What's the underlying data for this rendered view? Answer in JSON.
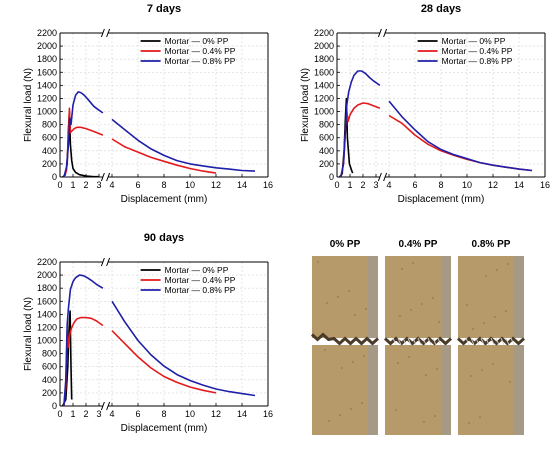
{
  "chart_data": [
    {
      "type": "line",
      "title": "7 days",
      "xlabel": "Displacement (mm)",
      "ylabel": "Flexural load (N)",
      "xlim": [
        0,
        16
      ],
      "ylim": [
        0,
        2200
      ],
      "axis_break": [
        3.3,
        3.7
      ],
      "xticks": [
        "0",
        "1",
        "2",
        "3",
        "4",
        "6",
        "8",
        "10",
        "12",
        "14",
        "16"
      ],
      "yticks": [
        "0",
        "200",
        "400",
        "600",
        "800",
        "1000",
        "1200",
        "1400",
        "1600",
        "1800",
        "2000",
        "2200"
      ],
      "legend_position": "top-right",
      "grid": true,
      "series": [
        {
          "name": "Mortar — 0% PP",
          "color": "#000000",
          "x": [
            0.2,
            0.4,
            0.55,
            0.65,
            0.72,
            0.8,
            0.9,
            1.0,
            1.2,
            1.5,
            2.0,
            2.5,
            3.0
          ],
          "y": [
            0,
            30,
            200,
            750,
            1000,
            500,
            250,
            130,
            70,
            35,
            15,
            8,
            5
          ]
        },
        {
          "name": "Mortar — 0.4% PP",
          "color": "#e41a1c",
          "x": [
            0.3,
            0.5,
            0.65,
            0.72,
            0.8,
            0.9,
            1.1,
            1.3,
            1.6,
            2.0,
            2.4,
            2.8,
            3.3,
            4.0,
            5,
            6,
            7,
            8,
            9,
            10,
            11,
            12
          ],
          "y": [
            0,
            100,
            600,
            1050,
            680,
            700,
            740,
            760,
            760,
            740,
            710,
            680,
            640,
            580,
            460,
            380,
            300,
            240,
            180,
            130,
            90,
            60
          ]
        },
        {
          "name": "Mortar — 0.8% PP",
          "color": "#1f1fa8",
          "x": [
            0.3,
            0.5,
            0.65,
            0.75,
            0.85,
            1.0,
            1.2,
            1.4,
            1.6,
            1.8,
            2.0,
            2.3,
            2.6,
            3.0,
            3.3,
            4.0,
            5,
            6,
            7,
            8,
            9,
            10,
            11,
            12,
            13,
            14,
            15
          ],
          "y": [
            0,
            150,
            500,
            900,
            800,
            1100,
            1250,
            1300,
            1290,
            1260,
            1220,
            1150,
            1080,
            1020,
            980,
            880,
            720,
            560,
            430,
            330,
            250,
            200,
            170,
            140,
            120,
            100,
            90
          ]
        }
      ]
    },
    {
      "type": "line",
      "title": "28 days",
      "xlabel": "Displacement (mm)",
      "ylabel": "Flexural load (N)",
      "xlim": [
        0,
        16
      ],
      "ylim": [
        0,
        2200
      ],
      "axis_break": [
        3.3,
        3.7
      ],
      "xticks": [
        "0",
        "1",
        "2",
        "3",
        "4",
        "6",
        "8",
        "10",
        "12",
        "14",
        "16"
      ],
      "yticks": [
        "0",
        "200",
        "400",
        "600",
        "800",
        "1000",
        "1200",
        "1400",
        "1600",
        "1800",
        "2000",
        "2200"
      ],
      "legend_position": "top-right",
      "grid": true,
      "series": [
        {
          "name": "Mortar — 0% PP",
          "color": "#000000",
          "x": [
            0.2,
            0.4,
            0.55,
            0.65,
            0.72,
            0.8,
            0.95,
            1.2
          ],
          "y": [
            0,
            50,
            400,
            900,
            1200,
            600,
            200,
            60
          ]
        },
        {
          "name": "Mortar — 0.4% PP",
          "color": "#e41a1c",
          "x": [
            0.3,
            0.5,
            0.65,
            0.75,
            0.85,
            1.0,
            1.3,
            1.6,
            2.0,
            2.4,
            2.8,
            3.3,
            4.0,
            5,
            6,
            7,
            8,
            9,
            10,
            11,
            12,
            13,
            14,
            15
          ],
          "y": [
            0,
            200,
            700,
            1000,
            850,
            950,
            1050,
            1100,
            1130,
            1120,
            1090,
            1050,
            940,
            820,
            640,
            500,
            400,
            330,
            270,
            220,
            180,
            150,
            120,
            100
          ]
        },
        {
          "name": "Mortar — 0.8% PP",
          "color": "#1f1fa8",
          "x": [
            0.3,
            0.5,
            0.65,
            0.75,
            0.9,
            1.1,
            1.3,
            1.6,
            1.9,
            2.2,
            2.5,
            2.8,
            3.3,
            4.0,
            5,
            6,
            7,
            8,
            9,
            10,
            11,
            12,
            13,
            14,
            15
          ],
          "y": [
            0,
            200,
            700,
            1100,
            1300,
            1450,
            1550,
            1620,
            1620,
            1580,
            1520,
            1470,
            1400,
            1160,
            920,
            720,
            540,
            420,
            340,
            280,
            220,
            180,
            150,
            120,
            100
          ]
        }
      ]
    },
    {
      "type": "line",
      "title": "90 days",
      "xlabel": "Displacement (mm)",
      "ylabel": "Flexural load (N)",
      "xlim": [
        0,
        16
      ],
      "ylim": [
        0,
        2200
      ],
      "axis_break": [
        3.3,
        3.7
      ],
      "xticks": [
        "0",
        "1",
        "2",
        "3",
        "4",
        "6",
        "8",
        "10",
        "12",
        "14",
        "16"
      ],
      "yticks": [
        "0",
        "200",
        "400",
        "600",
        "800",
        "1000",
        "1200",
        "1400",
        "1600",
        "1800",
        "2000",
        "2200"
      ],
      "legend_position": "top-right",
      "grid": true,
      "series": [
        {
          "name": "Mortar — 0% PP",
          "color": "#000000",
          "x": [
            0.2,
            0.45,
            0.6,
            0.7,
            0.78,
            0.85,
            0.9
          ],
          "y": [
            0,
            100,
            600,
            1200,
            1450,
            600,
            100
          ]
        },
        {
          "name": "Mortar — 0.4% PP",
          "color": "#e41a1c",
          "x": [
            0.3,
            0.45,
            0.55,
            0.65,
            0.75,
            0.9,
            1.1,
            1.3,
            1.6,
            2.0,
            2.4,
            2.8,
            3.3,
            4.0,
            5,
            6,
            7,
            8,
            9,
            10,
            11,
            12
          ],
          "y": [
            0,
            300,
            1150,
            900,
            1100,
            1200,
            1280,
            1330,
            1350,
            1350,
            1340,
            1300,
            1230,
            1150,
            950,
            750,
            580,
            450,
            360,
            290,
            240,
            200
          ]
        },
        {
          "name": "Mortar — 0.8% PP",
          "color": "#1f1fa8",
          "x": [
            0.3,
            0.45,
            0.55,
            0.65,
            0.8,
            1.0,
            1.2,
            1.5,
            1.8,
            2.1,
            2.4,
            2.8,
            3.3,
            4.0,
            5,
            6,
            7,
            8,
            9,
            10,
            11,
            12,
            13,
            14,
            15
          ],
          "y": [
            0,
            400,
            1250,
            1500,
            1780,
            1900,
            1960,
            2000,
            1990,
            1960,
            1920,
            1860,
            1800,
            1600,
            1280,
            1000,
            780,
            610,
            480,
            390,
            320,
            260,
            220,
            190,
            160
          ]
        }
      ]
    }
  ],
  "photo_panel": {
    "labels": [
      "0% PP",
      "0.4% PP",
      "0.8% PP"
    ],
    "colors": {
      "specimen": "#b69a6a",
      "specimen_dark": "#8f7448",
      "crack": "#4a3b28",
      "fibre": "#d8d8d8"
    }
  }
}
